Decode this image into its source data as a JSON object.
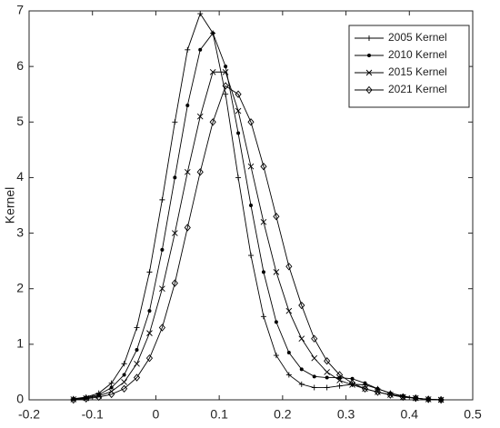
{
  "chart_data": {
    "type": "line",
    "y_label": "Kernel",
    "x": [
      -0.13,
      -0.11,
      -0.09,
      -0.07,
      -0.05,
      -0.03,
      -0.01,
      0.01,
      0.03,
      0.05,
      0.07,
      0.09,
      0.11,
      0.13,
      0.15,
      0.17,
      0.19,
      0.21,
      0.23,
      0.25,
      0.27,
      0.29,
      0.31,
      0.33,
      0.35,
      0.37,
      0.39,
      0.41,
      0.43,
      0.45
    ],
    "series": [
      {
        "name": "2005 Kernel",
        "color": "#000000",
        "marker": "plus",
        "values": [
          0.02,
          0.05,
          0.12,
          0.3,
          0.65,
          1.3,
          2.3,
          3.6,
          5.0,
          6.3,
          6.95,
          6.6,
          5.5,
          4.0,
          2.6,
          1.5,
          0.8,
          0.45,
          0.28,
          0.22,
          0.22,
          0.25,
          0.28,
          0.27,
          0.2,
          0.12,
          0.06,
          0.03,
          0.01,
          0.0
        ]
      },
      {
        "name": "2010 Kernel",
        "color": "#000000",
        "marker": "dot",
        "values": [
          0.01,
          0.04,
          0.09,
          0.22,
          0.45,
          0.9,
          1.6,
          2.7,
          4.0,
          5.3,
          6.3,
          6.6,
          6.0,
          4.8,
          3.5,
          2.3,
          1.4,
          0.85,
          0.55,
          0.42,
          0.4,
          0.4,
          0.38,
          0.3,
          0.2,
          0.12,
          0.07,
          0.03,
          0.01,
          0.0
        ]
      },
      {
        "name": "2015 Kernel",
        "color": "#000000",
        "marker": "x",
        "values": [
          0.01,
          0.03,
          0.07,
          0.15,
          0.32,
          0.65,
          1.2,
          2.0,
          3.0,
          4.1,
          5.1,
          5.9,
          5.9,
          5.2,
          4.2,
          3.2,
          2.3,
          1.6,
          1.1,
          0.75,
          0.5,
          0.35,
          0.27,
          0.2,
          0.14,
          0.09,
          0.05,
          0.03,
          0.01,
          0.0
        ]
      },
      {
        "name": "2021 Kernel",
        "color": "#000000",
        "marker": "diamond",
        "values": [
          0.0,
          0.02,
          0.05,
          0.1,
          0.2,
          0.4,
          0.75,
          1.3,
          2.1,
          3.1,
          4.1,
          5.0,
          5.65,
          5.5,
          5.0,
          4.2,
          3.3,
          2.4,
          1.7,
          1.1,
          0.7,
          0.45,
          0.3,
          0.2,
          0.14,
          0.09,
          0.05,
          0.03,
          0.01,
          0.0
        ]
      }
    ],
    "xlim": [
      -0.2,
      0.5
    ],
    "xticks": [
      -0.2,
      -0.1,
      0,
      0.1,
      0.2,
      0.3,
      0.4,
      0.5
    ],
    "ylim": [
      0,
      7
    ],
    "yticks": [
      0,
      1,
      2,
      3,
      4,
      5,
      6,
      7
    ],
    "grid": false,
    "legend": "upper right"
  }
}
